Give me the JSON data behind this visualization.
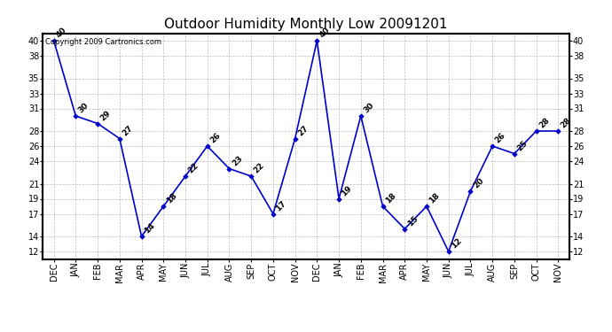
{
  "title": "Outdoor Humidity Monthly Low 20091201",
  "copyright_text": "Copyright 2009 Cartronics.com",
  "x_labels": [
    "DEC",
    "JAN",
    "FEB",
    "MAR",
    "APR",
    "MAY",
    "JUN",
    "JUL",
    "AUG",
    "SEP",
    "OCT",
    "NOV",
    "DEC",
    "JAN",
    "FEB",
    "MAR",
    "APR",
    "MAY",
    "JUN",
    "JUL",
    "AUG",
    "SEP",
    "OCT",
    "NOV"
  ],
  "y_values": [
    40,
    30,
    29,
    27,
    14,
    18,
    22,
    26,
    23,
    22,
    17,
    27,
    40,
    19,
    30,
    18,
    15,
    18,
    12,
    20,
    26,
    25,
    28,
    28
  ],
  "line_color": "#0000cc",
  "marker_color": "#0000cc",
  "bg_color": "#ffffff",
  "grid_color": "#bbbbbb",
  "y_ticks": [
    12,
    14,
    17,
    19,
    21,
    24,
    26,
    28,
    31,
    33,
    35,
    38,
    40
  ],
  "ylim": [
    11,
    41
  ],
  "title_fontsize": 11,
  "axis_fontsize": 7,
  "annot_fontsize": 6.5,
  "copyright_fontsize": 6
}
